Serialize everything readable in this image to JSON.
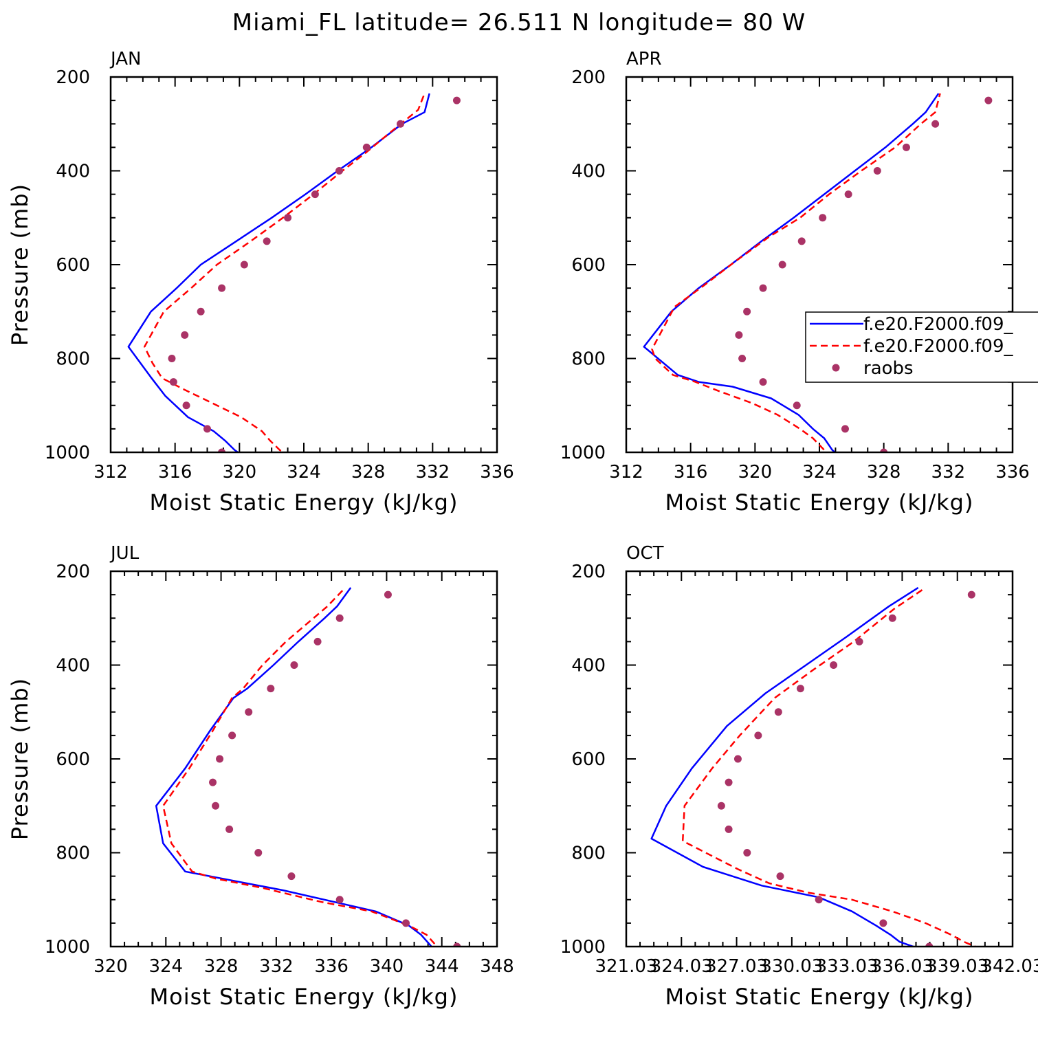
{
  "figure": {
    "title": "Miami_FL  latitude= 26.511 N longitude= 80 W"
  },
  "legend": {
    "entries": [
      {
        "label": "f.e20.F2000.f09_",
        "style": "solid",
        "color": "#0000ff"
      },
      {
        "label": "f.e20.F2000.f09_",
        "style": "dashed",
        "color": "#ff0000"
      },
      {
        "label": "raobs",
        "style": "dot",
        "color": "#aa3366"
      }
    ]
  },
  "chart_data": [
    {
      "type": "line",
      "panel": "JAN",
      "xlabel": "Moist Static Energy (kJ/kg)",
      "ylabel": "Pressure (mb)",
      "xlim": [
        312,
        336
      ],
      "ylim": [
        1000,
        200
      ],
      "xticks": [
        "312",
        "316",
        "320",
        "324",
        "328",
        "332",
        "336"
      ],
      "yticks": [
        "200",
        "400",
        "600",
        "800",
        "1000"
      ],
      "series": [
        {
          "style": "solid",
          "color": "#0000ff",
          "points": [
            [
              320.4,
              1012
            ],
            [
              319.7,
              995
            ],
            [
              319.1,
              975
            ],
            [
              318.4,
              955
            ],
            [
              316.8,
              925
            ],
            [
              315.4,
              880
            ],
            [
              314.5,
              840
            ],
            [
              313.1,
              775
            ],
            [
              314.5,
              700
            ],
            [
              316.1,
              650
            ],
            [
              317.6,
              600
            ],
            [
              319.8,
              550
            ],
            [
              322.0,
              500
            ],
            [
              324.1,
              450
            ],
            [
              326.1,
              400
            ],
            [
              328.2,
              350
            ],
            [
              330.1,
              300
            ],
            [
              331.5,
              275
            ],
            [
              331.8,
              235
            ]
          ]
        },
        {
          "style": "dashed",
          "color": "#ff0000",
          "points": [
            [
              323.1,
              1012
            ],
            [
              322.5,
              995
            ],
            [
              321.9,
              975
            ],
            [
              321.4,
              955
            ],
            [
              320.1,
              925
            ],
            [
              318.3,
              895
            ],
            [
              316.5,
              865
            ],
            [
              315.2,
              842
            ],
            [
              314.6,
              810
            ],
            [
              314.1,
              775
            ],
            [
              315.3,
              700
            ],
            [
              317.0,
              650
            ],
            [
              318.6,
              600
            ],
            [
              320.7,
              550
            ],
            [
              322.7,
              500
            ],
            [
              324.6,
              450
            ],
            [
              326.4,
              400
            ],
            [
              327.9,
              360
            ],
            [
              329.3,
              320
            ],
            [
              331.1,
              270
            ],
            [
              331.5,
              235
            ]
          ]
        },
        {
          "style": "dot",
          "color": "#aa3366",
          "points": [
            [
              333.5,
              250
            ],
            [
              330.0,
              300
            ],
            [
              327.9,
              350
            ],
            [
              326.2,
              400
            ],
            [
              324.7,
              450
            ],
            [
              323.0,
              500
            ],
            [
              321.7,
              550
            ],
            [
              320.3,
              600
            ],
            [
              318.9,
              650
            ],
            [
              317.6,
              700
            ],
            [
              316.6,
              750
            ],
            [
              315.8,
              800
            ],
            [
              315.9,
              850
            ],
            [
              316.7,
              900
            ],
            [
              318.0,
              950
            ],
            [
              318.9,
              1000
            ]
          ]
        }
      ]
    },
    {
      "type": "line",
      "panel": "APR",
      "xlabel": "Moist Static Energy (kJ/kg)",
      "ylabel": "",
      "xlim": [
        312,
        336
      ],
      "ylim": [
        1000,
        200
      ],
      "xticks": [
        "312",
        "316",
        "320",
        "324",
        "328",
        "332",
        "336"
      ],
      "yticks": [
        "200",
        "400",
        "600",
        "800",
        "1000"
      ],
      "series": [
        {
          "style": "solid",
          "color": "#0000ff",
          "points": [
            [
              325.3,
              1010
            ],
            [
              324.8,
              995
            ],
            [
              324.3,
              970
            ],
            [
              323.6,
              950
            ],
            [
              322.7,
              920
            ],
            [
              321.0,
              885
            ],
            [
              318.6,
              860
            ],
            [
              316.5,
              850
            ],
            [
              315.2,
              835
            ],
            [
              313.1,
              775
            ],
            [
              314.8,
              700
            ],
            [
              316.5,
              650
            ],
            [
              318.5,
              600
            ],
            [
              320.4,
              550
            ],
            [
              322.4,
              500
            ],
            [
              324.3,
              450
            ],
            [
              326.2,
              400
            ],
            [
              328.1,
              350
            ],
            [
              329.8,
              300
            ],
            [
              330.6,
              275
            ],
            [
              331.4,
              235
            ]
          ]
        },
        {
          "style": "dashed",
          "color": "#ff0000",
          "points": [
            [
              324.8,
              1010
            ],
            [
              324.3,
              995
            ],
            [
              323.6,
              970
            ],
            [
              322.8,
              950
            ],
            [
              321.4,
              920
            ],
            [
              319.8,
              895
            ],
            [
              317.8,
              870
            ],
            [
              316.3,
              850
            ],
            [
              314.9,
              835
            ],
            [
              313.8,
              800
            ],
            [
              313.6,
              780
            ],
            [
              315.0,
              690
            ],
            [
              316.8,
              645
            ],
            [
              318.7,
              595
            ],
            [
              320.9,
              540
            ],
            [
              322.8,
              500
            ],
            [
              324.6,
              450
            ],
            [
              326.6,
              400
            ],
            [
              328.7,
              350
            ],
            [
              330.3,
              300
            ],
            [
              331.2,
              275
            ],
            [
              331.5,
              235
            ]
          ]
        },
        {
          "style": "dot",
          "color": "#aa3366",
          "points": [
            [
              334.5,
              250
            ],
            [
              331.2,
              300
            ],
            [
              329.4,
              350
            ],
            [
              327.6,
              400
            ],
            [
              325.8,
              450
            ],
            [
              324.2,
              500
            ],
            [
              322.9,
              550
            ],
            [
              321.7,
              600
            ],
            [
              320.5,
              650
            ],
            [
              319.5,
              700
            ],
            [
              319.0,
              750
            ],
            [
              319.2,
              800
            ],
            [
              320.5,
              850
            ],
            [
              322.6,
              900
            ],
            [
              325.6,
              950
            ],
            [
              328.0,
              1000
            ]
          ]
        }
      ]
    },
    {
      "type": "line",
      "panel": "JUL",
      "xlabel": "Moist Static Energy (kJ/kg)",
      "ylabel": "Pressure (mb)",
      "xlim": [
        320,
        348
      ],
      "ylim": [
        1000,
        200
      ],
      "xticks": [
        "320",
        "324",
        "328",
        "332",
        "336",
        "340",
        "344",
        "348"
      ],
      "yticks": [
        "200",
        "400",
        "600",
        "800",
        "1000"
      ],
      "series": [
        {
          "style": "solid",
          "color": "#0000ff",
          "points": [
            [
              343.6,
              1012
            ],
            [
              343.1,
              995
            ],
            [
              342.5,
              975
            ],
            [
              341.6,
              955
            ],
            [
              339.2,
              925
            ],
            [
              332.5,
              880
            ],
            [
              325.4,
              840
            ],
            [
              323.8,
              780
            ],
            [
              323.3,
              700
            ],
            [
              325.4,
              620
            ],
            [
              327.2,
              540
            ],
            [
              328.9,
              470
            ],
            [
              329.9,
              450
            ],
            [
              331.8,
              400
            ],
            [
              333.6,
              350
            ],
            [
              335.5,
              300
            ],
            [
              336.4,
              275
            ],
            [
              337.4,
              235
            ]
          ]
        },
        {
          "style": "dashed",
          "color": "#ff0000",
          "points": [
            [
              344.0,
              1012
            ],
            [
              343.5,
              995
            ],
            [
              342.9,
              975
            ],
            [
              341.6,
              955
            ],
            [
              338.9,
              925
            ],
            [
              335.3,
              905
            ],
            [
              331.0,
              875
            ],
            [
              327.6,
              855
            ],
            [
              325.9,
              840
            ],
            [
              324.4,
              780
            ],
            [
              323.8,
              700
            ],
            [
              325.7,
              620
            ],
            [
              327.4,
              540
            ],
            [
              328.8,
              470
            ],
            [
              329.6,
              450
            ],
            [
              331.0,
              400
            ],
            [
              332.7,
              350
            ],
            [
              334.7,
              300
            ],
            [
              335.7,
              275
            ],
            [
              337.0,
              235
            ]
          ]
        },
        {
          "style": "dot",
          "color": "#aa3366",
          "points": [
            [
              340.1,
              250
            ],
            [
              336.6,
              300
            ],
            [
              335.0,
              350
            ],
            [
              333.3,
              400
            ],
            [
              331.6,
              450
            ],
            [
              330.0,
              500
            ],
            [
              328.8,
              550
            ],
            [
              327.9,
              600
            ],
            [
              327.4,
              650
            ],
            [
              327.6,
              700
            ],
            [
              328.6,
              750
            ],
            [
              330.7,
              800
            ],
            [
              333.1,
              850
            ],
            [
              336.6,
              900
            ],
            [
              341.4,
              950
            ],
            [
              345.1,
              1000
            ]
          ]
        }
      ]
    },
    {
      "type": "line",
      "panel": "OCT",
      "xlabel": "Moist Static Energy (kJ/kg)",
      "ylabel": "",
      "xlim": [
        321.03,
        342.03
      ],
      "ylim": [
        1000,
        200
      ],
      "xticks": [
        "321.03",
        "324.03",
        "327.03",
        "330.03",
        "333.03",
        "336.03",
        "339.03",
        "342.03"
      ],
      "yticks": [
        "200",
        "400",
        "600",
        "800",
        "1000"
      ],
      "series": [
        {
          "style": "solid",
          "color": "#0000ff",
          "points": [
            [
              337.0,
              1005
            ],
            [
              335.9,
              990
            ],
            [
              335.4,
              975
            ],
            [
              334.6,
              955
            ],
            [
              333.3,
              925
            ],
            [
              331.5,
              895
            ],
            [
              328.4,
              870
            ],
            [
              325.2,
              830
            ],
            [
              322.4,
              770
            ],
            [
              323.2,
              700
            ],
            [
              324.6,
              620
            ],
            [
              326.5,
              530
            ],
            [
              328.6,
              460
            ],
            [
              330.8,
              400
            ],
            [
              333.0,
              340
            ],
            [
              335.3,
              275
            ],
            [
              336.9,
              235
            ]
          ]
        },
        {
          "style": "dashed",
          "color": "#ff0000",
          "points": [
            [
              340.3,
              1005
            ],
            [
              339.4,
              990
            ],
            [
              338.7,
              975
            ],
            [
              337.3,
              950
            ],
            [
              335.5,
              925
            ],
            [
              333.3,
              900
            ],
            [
              330.9,
              885
            ],
            [
              328.8,
              865
            ],
            [
              327.1,
              835
            ],
            [
              324.1,
              775
            ],
            [
              324.2,
              700
            ],
            [
              325.7,
              620
            ],
            [
              327.2,
              550
            ],
            [
              329.1,
              470
            ],
            [
              331.2,
              410
            ],
            [
              333.4,
              350
            ],
            [
              335.6,
              280
            ],
            [
              337.3,
              235
            ]
          ]
        },
        {
          "style": "dot",
          "color": "#aa3366",
          "points": [
            [
              339.8,
              250
            ],
            [
              335.5,
              300
            ],
            [
              333.7,
              350
            ],
            [
              332.3,
              400
            ],
            [
              330.5,
              450
            ],
            [
              329.3,
              500
            ],
            [
              328.2,
              550
            ],
            [
              327.1,
              600
            ],
            [
              326.6,
              650
            ],
            [
              326.2,
              700
            ],
            [
              326.6,
              750
            ],
            [
              327.6,
              800
            ],
            [
              329.4,
              850
            ],
            [
              331.5,
              900
            ],
            [
              335.0,
              950
            ],
            [
              337.5,
              1000
            ]
          ]
        }
      ]
    }
  ]
}
